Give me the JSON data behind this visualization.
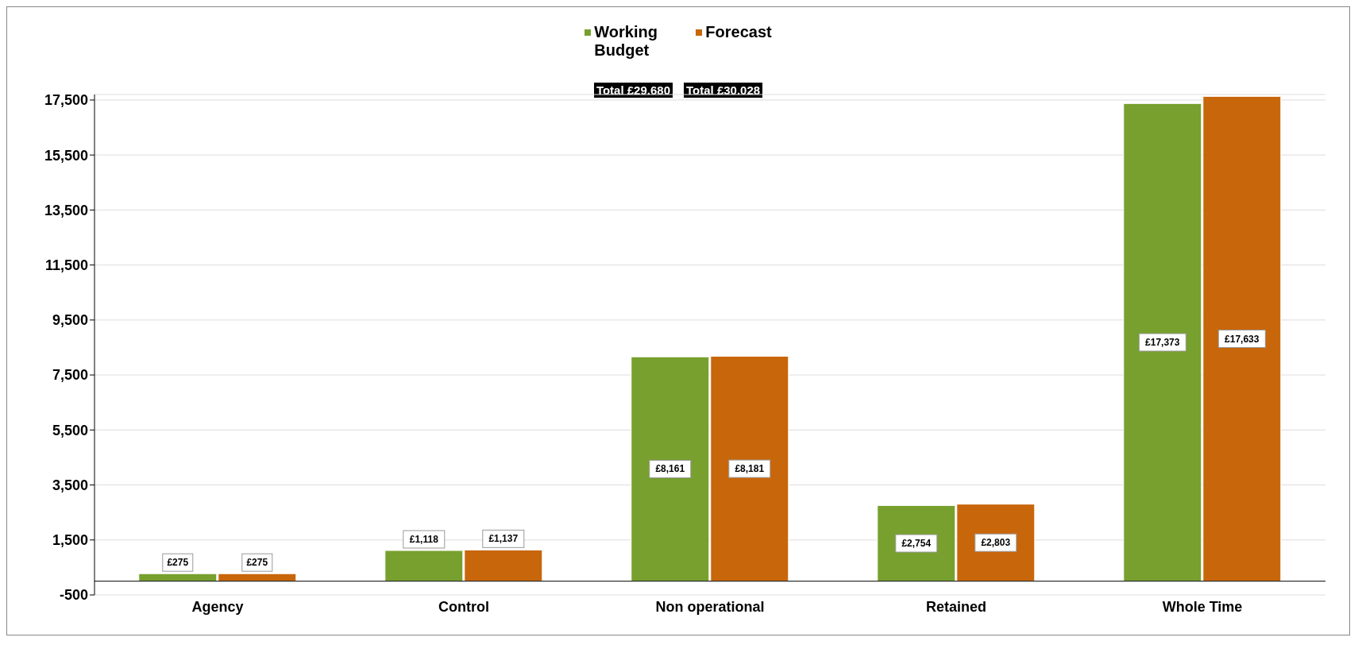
{
  "chart_data": {
    "type": "bar",
    "categories": [
      "Agency",
      "Control",
      "Non operational",
      "Retained",
      "Whole Time"
    ],
    "series": [
      {
        "name": "Working Budget",
        "color": "#77a02e",
        "values": [
          275,
          1118,
          8161,
          2754,
          17373
        ],
        "value_labels": [
          "£275",
          "£1,118",
          "£8,161",
          "£2,754",
          "£17,373"
        ]
      },
      {
        "name": "Forecast",
        "color": "#c8660b",
        "values": [
          275,
          1137,
          8181,
          2803,
          17633
        ],
        "value_labels": [
          "£275",
          "£1,137",
          "£8,181",
          "£2,803",
          "£17,633"
        ]
      }
    ],
    "ylim": [
      -500,
      17700
    ],
    "yticks": [
      {
        "value": -500,
        "label": "-500"
      },
      {
        "value": 1500,
        "label": "1,500"
      },
      {
        "value": 3500,
        "label": "3,500"
      },
      {
        "value": 5500,
        "label": "5,500"
      },
      {
        "value": 7500,
        "label": "7,500"
      },
      {
        "value": 9500,
        "label": "9,500"
      },
      {
        "value": 11500,
        "label": "11,500"
      },
      {
        "value": 13500,
        "label": "13,500"
      },
      {
        "value": 15500,
        "label": "15,500"
      },
      {
        "value": 17500,
        "label": "17,500"
      }
    ],
    "grid": "y",
    "legend": "top",
    "annotations": [
      "Total £29.680",
      "Total £30.028"
    ]
  }
}
